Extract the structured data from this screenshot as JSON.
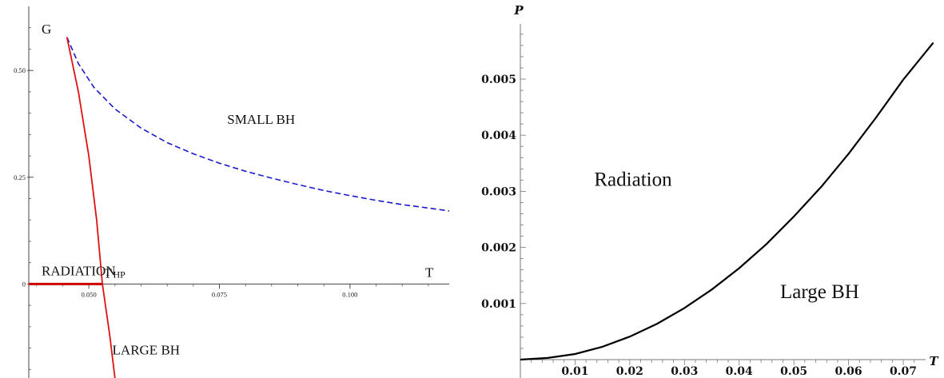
{
  "chart_data": [
    {
      "type": "line",
      "ylabel": "G",
      "xlabel": "T",
      "xlim": [
        0.0385,
        0.119
      ],
      "ylim": [
        -0.22,
        0.65
      ],
      "x_ticks": [
        {
          "value": 0.05,
          "label": "0.050"
        },
        {
          "value": 0.075,
          "label": "0.075"
        },
        {
          "value": 0.1,
          "label": "0.100"
        }
      ],
      "y_ticks": [
        {
          "value": 0,
          "label": "0"
        },
        {
          "value": 0.25,
          "label": "0.25"
        },
        {
          "value": 0.5,
          "label": "0.50"
        }
      ],
      "series": [
        {
          "name": "",
          "color": "#1a1acc",
          "dashed": true,
          "x": [
            0.0458,
            0.048,
            0.051,
            0.055,
            0.06,
            0.065,
            0.07,
            0.075,
            0.08,
            0.085,
            0.09,
            0.095,
            0.1,
            0.105,
            0.11,
            0.115,
            0.119
          ],
          "y": [
            0.578,
            0.516,
            0.46,
            0.41,
            0.365,
            0.331,
            0.305,
            0.283,
            0.264,
            0.248,
            0.233,
            0.219,
            0.207,
            0.196,
            0.186,
            0.178,
            0.171
          ]
        },
        {
          "name": "",
          "color": "#e01010",
          "dashed": false,
          "x": [
            0.0458,
            0.048,
            0.05,
            0.0515,
            0.0526,
            0.054,
            0.055
          ],
          "y": [
            0.578,
            0.45,
            0.3,
            0.15,
            0.0,
            -0.12,
            -0.22
          ]
        },
        {
          "name": "",
          "color": "#cc0000",
          "dashed": false,
          "x": [
            0.0385,
            0.0526
          ],
          "y": [
            0.0,
            0.0
          ]
        }
      ],
      "annotations": [
        {
          "text": "SMALL BH",
          "x": 0.0765,
          "y": 0.375
        },
        {
          "text": "RADIATION",
          "x": 0.0385,
          "y": 0.016
        },
        {
          "text": "T",
          "sub": "HP",
          "x": 0.0528,
          "y": 0.012
        },
        {
          "text": "T",
          "x": 0.1144,
          "y": 0.012
        },
        {
          "text": "LARGE BH",
          "x": 0.0545,
          "y": -0.165
        }
      ]
    },
    {
      "type": "line",
      "ylabel": "P",
      "xlabel": "T",
      "xlim": [
        0.0,
        0.08
      ],
      "ylim": [
        0.0,
        0.0064
      ],
      "x_ticks": [
        {
          "value": 0.01,
          "label": "0.01"
        },
        {
          "value": 0.02,
          "label": "0.02"
        },
        {
          "value": 0.03,
          "label": "0.03"
        },
        {
          "value": 0.04,
          "label": "0.04"
        },
        {
          "value": 0.05,
          "label": "0.05"
        },
        {
          "value": 0.06,
          "label": "0.06"
        },
        {
          "value": 0.07,
          "label": "0.07"
        }
      ],
      "y_ticks": [
        {
          "value": 0.001,
          "label": "0.001"
        },
        {
          "value": 0.002,
          "label": "0.002"
        },
        {
          "value": 0.003,
          "label": "0.003"
        },
        {
          "value": 0.004,
          "label": "0.004"
        },
        {
          "value": 0.005,
          "label": "0.005"
        }
      ],
      "series": [
        {
          "name": "",
          "color": "#000000",
          "dashed": false,
          "x": [
            0.0,
            0.005,
            0.01,
            0.015,
            0.02,
            0.025,
            0.03,
            0.035,
            0.04,
            0.045,
            0.05,
            0.055,
            0.06,
            0.065,
            0.07,
            0.0755
          ],
          "y": [
            0.0,
            3e-05,
            0.0001,
            0.00023,
            0.00041,
            0.00064,
            0.00092,
            0.00125,
            0.00163,
            0.00206,
            0.00255,
            0.00308,
            0.00367,
            0.00431,
            0.00499,
            0.00565
          ]
        }
      ],
      "annotations": [
        {
          "text": "Radiation",
          "x": 0.0135,
          "y": 0.0031
        },
        {
          "text": "Large BH",
          "x": 0.0475,
          "y": 0.0011
        }
      ]
    }
  ]
}
